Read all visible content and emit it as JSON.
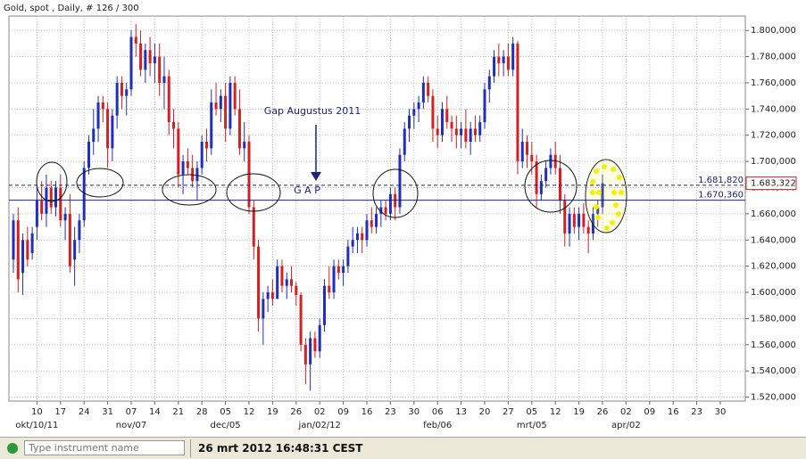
{
  "chart_data": {
    "type": "candlestick",
    "title": "Gold, spot , Daily, # 126 / 300",
    "colors": {
      "up": "#1f2fb8",
      "down": "#d42020"
    },
    "grid": true,
    "ylim": [
      1517,
      1811
    ],
    "yticks": [
      {
        "value": 1520,
        "label": "1.520,000"
      },
      {
        "value": 1540,
        "label": "1.540,000"
      },
      {
        "value": 1560,
        "label": "1.560,000"
      },
      {
        "value": 1580,
        "label": "1.580,000"
      },
      {
        "value": 1600,
        "label": "1.600,000"
      },
      {
        "value": 1620,
        "label": "1.620,000"
      },
      {
        "value": 1640,
        "label": "1.640,000"
      },
      {
        "value": 1660,
        "label": "1.660,000"
      },
      {
        "value": 1680,
        "label": "1.680,000"
      },
      {
        "value": 1700,
        "label": "1.700,000"
      },
      {
        "value": 1720,
        "label": "1.720,000"
      },
      {
        "value": 1740,
        "label": "1.740,000"
      },
      {
        "value": 1760,
        "label": "1.760,000"
      },
      {
        "value": 1780,
        "label": "1.780,000"
      },
      {
        "value": 1800,
        "label": "1.800,000"
      }
    ],
    "xlim": [
      "2011-10-03",
      "2012-05-04"
    ],
    "xticks": [
      {
        "value": "2011-10-10",
        "label": "10"
      },
      {
        "value": "2011-10-17",
        "label": "17"
      },
      {
        "value": "2011-10-24",
        "label": "24"
      },
      {
        "value": "2011-10-31",
        "label": "31"
      },
      {
        "value": "2011-11-07",
        "label": "07"
      },
      {
        "value": "2011-11-14",
        "label": "14"
      },
      {
        "value": "2011-11-21",
        "label": "21"
      },
      {
        "value": "2011-11-28",
        "label": "28"
      },
      {
        "value": "2011-12-05",
        "label": "05"
      },
      {
        "value": "2011-12-12",
        "label": "12"
      },
      {
        "value": "2011-12-19",
        "label": "19"
      },
      {
        "value": "2011-12-26",
        "label": "26"
      },
      {
        "value": "2012-01-02",
        "label": "02"
      },
      {
        "value": "2012-01-09",
        "label": "09"
      },
      {
        "value": "2012-01-16",
        "label": "16"
      },
      {
        "value": "2012-01-23",
        "label": "23"
      },
      {
        "value": "2012-01-30",
        "label": "30"
      },
      {
        "value": "2012-02-06",
        "label": "06"
      },
      {
        "value": "2012-02-13",
        "label": "13"
      },
      {
        "value": "2012-02-20",
        "label": "20"
      },
      {
        "value": "2012-02-27",
        "label": "27"
      },
      {
        "value": "2012-03-05",
        "label": "05"
      },
      {
        "value": "2012-03-12",
        "label": "12"
      },
      {
        "value": "2012-03-19",
        "label": "19"
      },
      {
        "value": "2012-03-26",
        "label": "26"
      },
      {
        "value": "2012-04-02",
        "label": "02"
      },
      {
        "value": "2012-04-09",
        "label": "09"
      },
      {
        "value": "2012-04-16",
        "label": "16"
      },
      {
        "value": "2012-04-23",
        "label": "23"
      },
      {
        "value": "2012-04-30",
        "label": "30"
      }
    ],
    "month_ticks": [
      {
        "value": "2011-10-10",
        "label": "okt/10/11"
      },
      {
        "value": "2011-11-07",
        "label": "nov/07"
      },
      {
        "value": "2011-12-05",
        "label": "dec/05"
      },
      {
        "value": "2012-01-02",
        "label": "jan/02/12"
      },
      {
        "value": "2012-02-06",
        "label": "feb/06"
      },
      {
        "value": "2012-03-05",
        "label": "mrt/05"
      },
      {
        "value": "2012-04-02",
        "label": "apr/02"
      }
    ],
    "x": [
      "2011-10-03",
      "2011-10-04",
      "2011-10-05",
      "2011-10-06",
      "2011-10-07",
      "2011-10-10",
      "2011-10-11",
      "2011-10-12",
      "2011-10-13",
      "2011-10-14",
      "2011-10-17",
      "2011-10-18",
      "2011-10-19",
      "2011-10-20",
      "2011-10-21",
      "2011-10-24",
      "2011-10-25",
      "2011-10-26",
      "2011-10-27",
      "2011-10-28",
      "2011-10-31",
      "2011-11-01",
      "2011-11-02",
      "2011-11-03",
      "2011-11-04",
      "2011-11-07",
      "2011-11-08",
      "2011-11-09",
      "2011-11-10",
      "2011-11-11",
      "2011-11-14",
      "2011-11-15",
      "2011-11-16",
      "2011-11-17",
      "2011-11-18",
      "2011-11-21",
      "2011-11-22",
      "2011-11-23",
      "2011-11-24",
      "2011-11-25",
      "2011-11-28",
      "2011-11-29",
      "2011-11-30",
      "2011-12-01",
      "2011-12-02",
      "2011-12-05",
      "2011-12-06",
      "2011-12-07",
      "2011-12-08",
      "2011-12-09",
      "2011-12-12",
      "2011-12-13",
      "2011-12-14",
      "2011-12-15",
      "2011-12-16",
      "2011-12-19",
      "2011-12-20",
      "2011-12-21",
      "2011-12-22",
      "2011-12-23",
      "2011-12-26",
      "2011-12-27",
      "2011-12-28",
      "2011-12-29",
      "2011-12-30",
      "2012-01-02",
      "2012-01-03",
      "2012-01-04",
      "2012-01-05",
      "2012-01-06",
      "2012-01-09",
      "2012-01-10",
      "2012-01-11",
      "2012-01-12",
      "2012-01-13",
      "2012-01-16",
      "2012-01-17",
      "2012-01-18",
      "2012-01-19",
      "2012-01-20",
      "2012-01-23",
      "2012-01-24",
      "2012-01-25",
      "2012-01-26",
      "2012-01-27",
      "2012-01-30",
      "2012-01-31",
      "2012-02-01",
      "2012-02-02",
      "2012-02-03",
      "2012-02-06",
      "2012-02-07",
      "2012-02-08",
      "2012-02-09",
      "2012-02-10",
      "2012-02-13",
      "2012-02-14",
      "2012-02-15",
      "2012-02-16",
      "2012-02-17",
      "2012-02-20",
      "2012-02-21",
      "2012-02-22",
      "2012-02-23",
      "2012-02-24",
      "2012-02-27",
      "2012-02-28",
      "2012-02-29",
      "2012-03-01",
      "2012-03-02",
      "2012-03-05",
      "2012-03-06",
      "2012-03-07",
      "2012-03-08",
      "2012-03-09",
      "2012-03-12",
      "2012-03-13",
      "2012-03-14",
      "2012-03-15",
      "2012-03-16",
      "2012-03-19",
      "2012-03-20",
      "2012-03-21",
      "2012-03-22",
      "2012-03-23",
      "2012-03-26"
    ],
    "candles": [
      [
        1625,
        1660,
        1615,
        1655
      ],
      [
        1655,
        1665,
        1600,
        1610
      ],
      [
        1615,
        1645,
        1598,
        1640
      ],
      [
        1640,
        1650,
        1620,
        1625
      ],
      [
        1630,
        1650,
        1625,
        1645
      ],
      [
        1650,
        1680,
        1640,
        1670
      ],
      [
        1670,
        1685,
        1655,
        1660
      ],
      [
        1660,
        1690,
        1650,
        1680
      ],
      [
        1680,
        1685,
        1660,
        1665
      ],
      [
        1665,
        1685,
        1658,
        1680
      ],
      [
        1680,
        1690,
        1650,
        1655
      ],
      [
        1655,
        1665,
        1640,
        1660
      ],
      [
        1660,
        1675,
        1615,
        1620
      ],
      [
        1625,
        1650,
        1605,
        1640
      ],
      [
        1640,
        1660,
        1630,
        1655
      ],
      [
        1655,
        1700,
        1650,
        1695
      ],
      [
        1695,
        1720,
        1690,
        1715
      ],
      [
        1715,
        1740,
        1705,
        1725
      ],
      [
        1725,
        1750,
        1715,
        1745
      ],
      [
        1745,
        1750,
        1730,
        1740
      ],
      [
        1740,
        1745,
        1695,
        1710
      ],
      [
        1710,
        1740,
        1700,
        1735
      ],
      [
        1735,
        1765,
        1725,
        1760
      ],
      [
        1760,
        1765,
        1740,
        1750
      ],
      [
        1750,
        1760,
        1735,
        1755
      ],
      [
        1755,
        1800,
        1750,
        1795
      ],
      [
        1795,
        1805,
        1780,
        1790
      ],
      [
        1790,
        1800,
        1765,
        1770
      ],
      [
        1770,
        1790,
        1760,
        1785
      ],
      [
        1785,
        1795,
        1765,
        1775
      ],
      [
        1775,
        1790,
        1760,
        1780
      ],
      [
        1780,
        1790,
        1750,
        1760
      ],
      [
        1760,
        1780,
        1740,
        1765
      ],
      [
        1765,
        1770,
        1720,
        1730
      ],
      [
        1730,
        1740,
        1710,
        1725
      ],
      [
        1725,
        1730,
        1680,
        1690
      ],
      [
        1690,
        1705,
        1675,
        1700
      ],
      [
        1700,
        1710,
        1690,
        1695
      ],
      [
        1695,
        1705,
        1680,
        1685
      ],
      [
        1685,
        1700,
        1670,
        1695
      ],
      [
        1695,
        1720,
        1690,
        1715
      ],
      [
        1715,
        1725,
        1700,
        1710
      ],
      [
        1710,
        1755,
        1705,
        1745
      ],
      [
        1745,
        1760,
        1735,
        1740
      ],
      [
        1740,
        1755,
        1730,
        1750
      ],
      [
        1750,
        1760,
        1715,
        1725
      ],
      [
        1725,
        1765,
        1720,
        1760
      ],
      [
        1760,
        1765,
        1735,
        1740
      ],
      [
        1740,
        1755,
        1705,
        1710
      ],
      [
        1710,
        1730,
        1700,
        1715
      ],
      [
        1715,
        1720,
        1660,
        1665
      ],
      [
        1665,
        1670,
        1625,
        1635
      ],
      [
        1635,
        1640,
        1570,
        1580
      ],
      [
        1580,
        1600,
        1560,
        1595
      ],
      [
        1595,
        1605,
        1585,
        1600
      ],
      [
        1600,
        1610,
        1590,
        1595
      ],
      [
        1595,
        1625,
        1595,
        1620
      ],
      [
        1620,
        1625,
        1600,
        1605
      ],
      [
        1605,
        1615,
        1595,
        1610
      ],
      [
        1610,
        1620,
        1600,
        1605
      ],
      [
        1605,
        1608,
        1590,
        1598
      ],
      [
        1598,
        1600,
        1555,
        1560
      ],
      [
        1560,
        1565,
        1530,
        1545
      ],
      [
        1545,
        1570,
        1525,
        1565
      ],
      [
        1565,
        1570,
        1550,
        1555
      ],
      [
        1555,
        1580,
        1550,
        1575
      ],
      [
        1575,
        1610,
        1570,
        1605
      ],
      [
        1605,
        1620,
        1595,
        1600
      ],
      [
        1600,
        1625,
        1595,
        1620
      ],
      [
        1620,
        1625,
        1610,
        1615
      ],
      [
        1615,
        1625,
        1605,
        1620
      ],
      [
        1620,
        1640,
        1615,
        1635
      ],
      [
        1635,
        1650,
        1630,
        1640
      ],
      [
        1640,
        1650,
        1630,
        1645
      ],
      [
        1645,
        1650,
        1630,
        1640
      ],
      [
        1640,
        1660,
        1635,
        1655
      ],
      [
        1655,
        1665,
        1645,
        1650
      ],
      [
        1650,
        1665,
        1645,
        1660
      ],
      [
        1660,
        1670,
        1650,
        1665
      ],
      [
        1665,
        1670,
        1655,
        1660
      ],
      [
        1660,
        1680,
        1655,
        1675
      ],
      [
        1675,
        1680,
        1655,
        1665
      ],
      [
        1665,
        1710,
        1660,
        1705
      ],
      [
        1705,
        1730,
        1700,
        1725
      ],
      [
        1725,
        1740,
        1715,
        1735
      ],
      [
        1735,
        1745,
        1725,
        1740
      ],
      [
        1740,
        1750,
        1730,
        1745
      ],
      [
        1745,
        1765,
        1740,
        1760
      ],
      [
        1760,
        1765,
        1745,
        1750
      ],
      [
        1750,
        1755,
        1715,
        1725
      ],
      [
        1725,
        1735,
        1710,
        1720
      ],
      [
        1720,
        1745,
        1715,
        1740
      ],
      [
        1740,
        1750,
        1725,
        1730
      ],
      [
        1730,
        1735,
        1715,
        1725
      ],
      [
        1725,
        1735,
        1710,
        1720
      ],
      [
        1720,
        1730,
        1710,
        1725
      ],
      [
        1725,
        1740,
        1710,
        1715
      ],
      [
        1715,
        1730,
        1705,
        1725
      ],
      [
        1725,
        1735,
        1715,
        1720
      ],
      [
        1720,
        1735,
        1715,
        1730
      ],
      [
        1730,
        1760,
        1725,
        1755
      ],
      [
        1755,
        1770,
        1745,
        1765
      ],
      [
        1765,
        1785,
        1760,
        1780
      ],
      [
        1780,
        1790,
        1765,
        1775
      ],
      [
        1775,
        1785,
        1765,
        1780
      ],
      [
        1780,
        1790,
        1765,
        1770
      ],
      [
        1770,
        1795,
        1765,
        1790
      ],
      [
        1790,
        1792,
        1690,
        1700
      ],
      [
        1700,
        1725,
        1695,
        1715
      ],
      [
        1715,
        1720,
        1695,
        1705
      ],
      [
        1705,
        1715,
        1690,
        1700
      ],
      [
        1700,
        1705,
        1665,
        1675
      ],
      [
        1675,
        1690,
        1670,
        1685
      ],
      [
        1685,
        1700,
        1680,
        1695
      ],
      [
        1695,
        1710,
        1690,
        1705
      ],
      [
        1705,
        1715,
        1690,
        1695
      ],
      [
        1695,
        1705,
        1660,
        1670
      ],
      [
        1670,
        1675,
        1635,
        1645
      ],
      [
        1645,
        1665,
        1635,
        1660
      ],
      [
        1660,
        1665,
        1645,
        1650
      ],
      [
        1650,
        1665,
        1640,
        1660
      ],
      [
        1660,
        1668,
        1645,
        1650
      ],
      [
        1650,
        1655,
        1630,
        1645
      ],
      [
        1645,
        1665,
        1640,
        1660
      ],
      [
        1660,
        1670,
        1650,
        1665
      ],
      [
        1665,
        1690,
        1660,
        1683.322
      ]
    ],
    "hlines": [
      {
        "value": 1681.82,
        "label": "1.681,820",
        "style": "dashed",
        "color": "#1a237e"
      },
      {
        "value": 1670.36,
        "label": "1.670,360",
        "style": "solid",
        "color": "#1a237e"
      }
    ],
    "last_price": {
      "value": 1683.322,
      "label": "1.683,322",
      "color": "#d42020"
    },
    "annotations": [
      "Gap Augustus 2011",
      "G A P"
    ]
  },
  "status_bar": {
    "input_placeholder": "Type instrument name",
    "timestamp": "26 mrt 2012 16:48:31 CEST"
  }
}
